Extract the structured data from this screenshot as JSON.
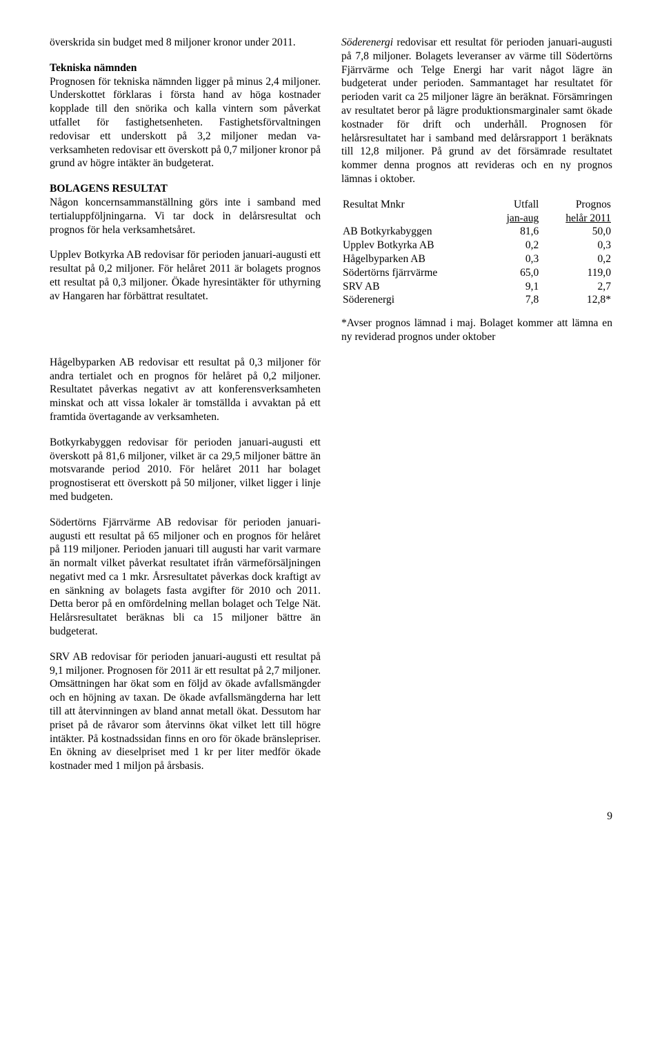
{
  "col1": {
    "intro": "överskrida sin budget med 8 miljoner kronor under 2011.",
    "tekniska_hdr": "Tekniska nämnden",
    "tekniska_body": "Prognosen för tekniska nämnden ligger på minus 2,4 miljoner. Underskottet förklaras i första hand av höga kostnader kopplade till den snörika och kalla vintern som påverkat utfallet för fastighetsenheten. Fastighetsförvaltningen redovisar ett underskott på 3,2 miljoner medan va-verksamheten redovisar ett överskott på 0,7 miljoner kronor på grund av högre intäkter än budgeterat.",
    "bolag_hdr": "BOLAGENS RESULTAT",
    "bolag_intro": "Någon koncernsammanställning görs inte i samband med tertialuppföljningarna. Vi tar dock in delårsresultat och prognos för hela verksamhetsåret.",
    "upplev": "Upplev Botkyrka AB redovisar för perioden januari-augusti ett resultat på 0,2 miljoner. För helåret 2011 är bolagets prognos ett resultat på 0,3 miljoner. Ökade hyresintäkter för uthyrning av Hangaren har förbättrat resultatet."
  },
  "col2": {
    "soder_italic": "Söderenergi",
    "soder_body": " redovisar ett resultat för perioden januari-augusti på 7,8 miljoner. Bolagets leveranser av värme till Södertörns Fjärrvärme och Telge Energi har varit något lägre än budgeterat under perioden. Sammantaget har resultatet för perioden varit ca 25 miljoner lägre än beräknat. Försämringen av resultatet beror på lägre produktionsmarginaler samt ökade kostnader för drift och underhåll. Prognosen för helårsresultatet har i samband med delårsrapport 1 beräknats till 12,8 miljoner. På grund av det försämrade resultatet kommer denna prognos att revideras och en ny prognos lämnas i oktober.",
    "table": {
      "h1": "Resultat Mnkr",
      "h2": "Utfall",
      "h3": "Prognos",
      "sh2": "jan-aug",
      "sh3": "helår 2011",
      "rows": [
        {
          "label": "AB Botkyrkabyggen",
          "v1": "81,6",
          "v2": "50,0"
        },
        {
          "label": "Upplev Botkyrka AB",
          "v1": "0,2",
          "v2": "0,3"
        },
        {
          "label": "Hågelbyparken AB",
          "v1": "0,3",
          "v2": "0,2"
        },
        {
          "label": "Södertörns fjärrvärme",
          "v1": "65,0",
          "v2": "119,0"
        },
        {
          "label": "SRV AB",
          "v1": "9,1",
          "v2": "2,7"
        },
        {
          "label": "Söderenergi",
          "v1": "7,8",
          "v2": "12,8*"
        }
      ]
    },
    "footnote": "*Avser prognos lämnad i maj. Bolaget kommer att lämna en ny reviderad prognos under oktober"
  },
  "full": {
    "hagelby": "Hågelbyparken AB redovisar ett resultat på 0,3 miljoner för andra tertialet och en prognos för helåret på 0,2 miljoner. Resultatet påverkas negativt av att konferensverksamheten minskat och att vissa lokaler är tomställda i avvaktan på ett framtida övertagande av verksamheten.",
    "botkyrkabyggen": "Botkyrkabyggen redovisar för perioden januari-augusti ett överskott på 81,6 miljoner, vilket är ca 29,5 miljoner bättre än motsvarande period 2010. För helåret 2011 har bolaget prognostiserat ett överskott på 50 miljoner, vilket ligger i linje med budgeten.",
    "sodertorns": "Södertörns Fjärrvärme AB redovisar för perioden januari-augusti ett resultat på 65 miljoner och en prognos för helåret på 119 miljoner. Perioden januari till augusti har varit varmare än normalt vilket påverkat resultatet ifrån värmeförsäljningen negativt med ca 1 mkr. Årsresultatet påverkas dock kraftigt av en sänkning av bolagets fasta avgifter för 2010 och 2011. Detta beror på en omfördelning mellan bolaget och Telge Nät. Helårsresultatet beräknas bli ca 15 miljoner bättre än budgeterat.",
    "srv": "SRV AB redovisar för perioden januari-augusti ett resultat på 9,1 miljoner. Prognosen för 2011 är ett resultat på 2,7 miljoner. Omsättningen har ökat som en följd av ökade avfallsmängder och en höjning av taxan. De ökade avfallsmängderna har lett till att återvinningen av bland annat metall ökat. Dessutom har priset på de råvaror som återvinns ökat vilket lett till högre intäkter. På kostnadssidan finns en oro för ökade bränslepriser. En ökning av dieselpriset med 1 kr per liter medför ökade kostnader med 1 miljon på årsbasis."
  },
  "pagenum": "9"
}
